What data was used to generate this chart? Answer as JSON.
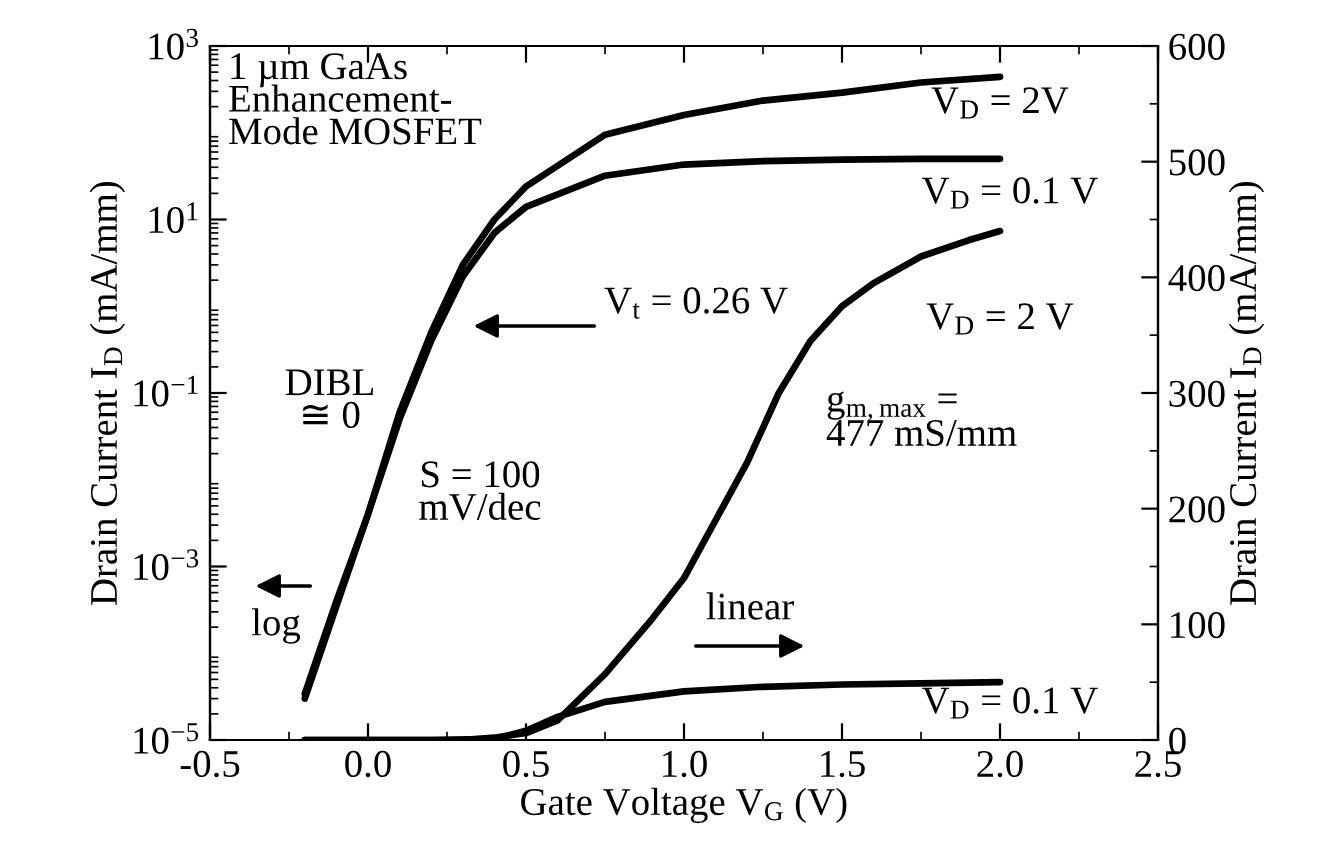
{
  "chart_data": {
    "type": "line",
    "xlabel": "Gate Voltage V$_{G}$ (V)",
    "ylabel": "Drain Current I$_{D}$ (mA/mm)",
    "y2label": "Drain Current I$_{D}$ (mA/mm)",
    "series": [
      {
        "color": "#000000",
        "axis": "y",
        "x": [
          -0.2,
          -0.1,
          0,
          0.1,
          0.2,
          0.3,
          0.4,
          0.5,
          0.75,
          1.0,
          1.25,
          1.5,
          1.75,
          2.0
        ],
        "values": [
          3.4e-05,
          0.0004,
          0.004,
          0.06,
          0.5,
          3,
          10,
          24,
          95,
          160,
          235,
          290,
          380,
          440
        ]
      },
      {
        "color": "#000000",
        "axis": "y",
        "x": [
          -0.2,
          -0.1,
          0,
          0.1,
          0.2,
          0.3,
          0.4,
          0.5,
          0.75,
          1.0,
          1.25,
          1.5,
          1.75,
          2.0
        ],
        "values": [
          3e-05,
          0.00035,
          0.004,
          0.05,
          0.4,
          2.2,
          7,
          14,
          32,
          43,
          47,
          49,
          50,
          50
        ]
      },
      {
        "color": "#000000",
        "axis": "y2",
        "x": [
          -0.2,
          0,
          0.2,
          0.3,
          0.4,
          0.5,
          0.6,
          0.75,
          0.9,
          1.0,
          1.1,
          1.2,
          1.3,
          1.4,
          1.5,
          1.6,
          1.75,
          1.9,
          2.0
        ],
        "values": [
          0,
          0,
          0,
          0,
          2,
          6,
          17,
          57,
          105,
          140,
          190,
          240,
          300,
          345,
          375,
          395,
          418,
          432,
          440
        ]
      },
      {
        "color": "#000000",
        "axis": "y2",
        "x": [
          -0.2,
          0,
          0.2,
          0.4,
          0.5,
          0.6,
          0.75,
          1.0,
          1.25,
          1.5,
          1.75,
          2.0
        ],
        "values": [
          0,
          0,
          0,
          1,
          8,
          20,
          33,
          42,
          46,
          48,
          49,
          50
        ]
      }
    ],
    "log": "y",
    "xlim": [
      -0.5,
      2.5
    ],
    "xticks": [
      -0.5,
      {
        "value": 0,
        "label": "0.0"
      },
      0.5,
      {
        "value": 1,
        "label": "1.0"
      },
      1.5,
      {
        "value": 2,
        "label": "2.0"
      },
      2.5
    ],
    "ylim": [
      1e-05,
      1000
    ],
    "yticks": [
      {
        "value": 1e-05,
        "label": "10$^{−5}$"
      },
      {
        "value": 0.001,
        "label": "10$^{−3}$"
      },
      {
        "value": 0.1,
        "label": "10$^{−1}$"
      },
      {
        "value": 10,
        "label": "10$^{1}$"
      },
      {
        "value": 1000,
        "label": "10$^{3}$"
      }
    ],
    "y2lim": [
      0,
      600
    ],
    "y2ticks": [
      0,
      100,
      200,
      300,
      400,
      500,
      600
    ],
    "grid": false,
    "legend": false,
    "marker": "none",
    "line_style": "solid",
    "annotations": [
      "1 µm GaAs\nEnhancement-\nMode MOSFET",
      "V$_{D}$ = 2V",
      "V$_{D}$ = 0.1 V",
      "V$_{t}$ = 0.26 V",
      "DIBL\n≅ 0",
      "S = 100\nmV/dec",
      "log",
      "linear",
      "g$_{m,max}$ =\n477 mS/mm",
      "V$_{D}$ = 2 V",
      "V$_{D}$ = 0.1 V"
    ]
  }
}
